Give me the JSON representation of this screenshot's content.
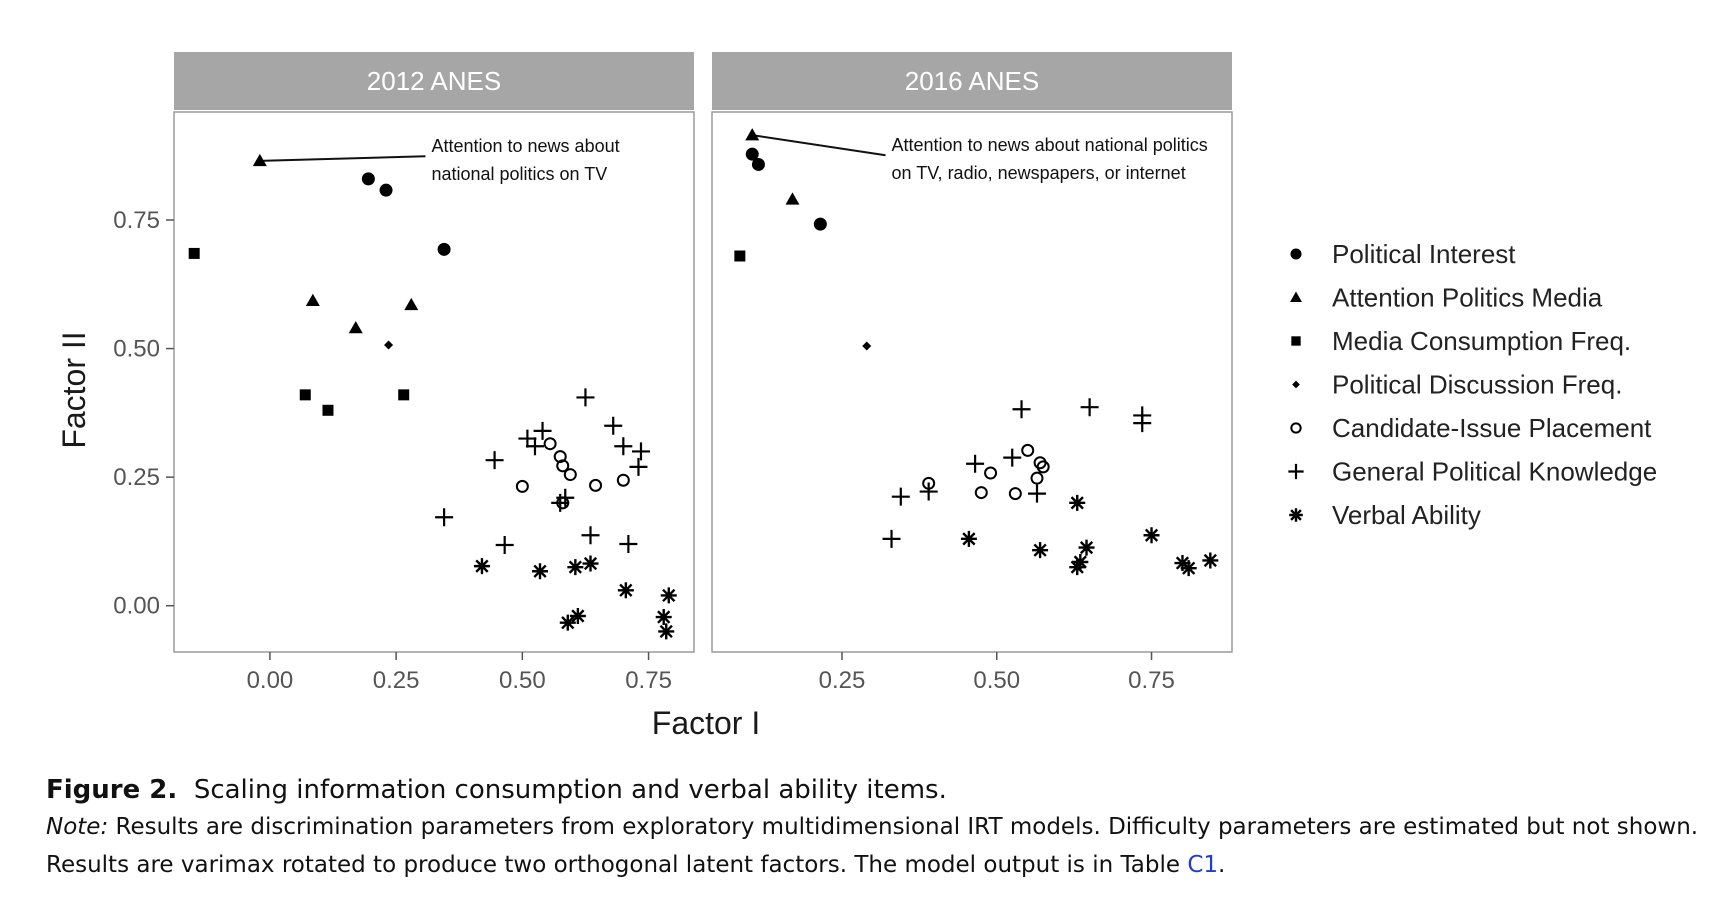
{
  "chart_data": {
    "type": "scatter",
    "xlabel": "Factor I",
    "ylabel": "Factor II",
    "ylim": [
      -0.09,
      0.96
    ],
    "yticks": [
      "0.00",
      "0.25",
      "0.50",
      "0.75"
    ],
    "ytick_values": [
      0.0,
      0.25,
      0.5,
      0.75
    ],
    "legend_position": "right",
    "legend": [
      {
        "label": "Political Interest",
        "marker": "circle"
      },
      {
        "label": "Attention Politics Media",
        "marker": "triangle"
      },
      {
        "label": "Media Consumption Freq.",
        "marker": "square"
      },
      {
        "label": "Political Discussion Freq.",
        "marker": "diamond"
      },
      {
        "label": "Candidate-Issue Placement",
        "marker": "open-circle"
      },
      {
        "label": "General Political Knowledge",
        "marker": "plus"
      },
      {
        "label": "Verbal Ability",
        "marker": "asterisk"
      }
    ],
    "panels": [
      {
        "title": "2012 ANES",
        "xlim": [
          -0.19,
          0.84
        ],
        "xticks": [
          "0.00",
          "0.25",
          "0.50",
          "0.75"
        ],
        "xtick_values": [
          0.0,
          0.25,
          0.5,
          0.75
        ],
        "annotation": {
          "lines": [
            "Attention to news about",
            "national politics on TV"
          ],
          "point": [
            -0.02,
            0.865
          ],
          "text_anchor": [
            0.32,
            0.874
          ]
        },
        "series": [
          {
            "name": "Political Interest",
            "points": [
              [
                0.195,
                0.83
              ],
              [
                0.23,
                0.808
              ],
              [
                0.345,
                0.693
              ]
            ]
          },
          {
            "name": "Attention Politics Media",
            "points": [
              [
                -0.02,
                0.865
              ],
              [
                0.085,
                0.593
              ],
              [
                0.17,
                0.54
              ],
              [
                0.28,
                0.585
              ]
            ]
          },
          {
            "name": "Media Consumption Freq.",
            "points": [
              [
                -0.15,
                0.685
              ],
              [
                0.07,
                0.41
              ],
              [
                0.115,
                0.38
              ],
              [
                0.265,
                0.41
              ]
            ]
          },
          {
            "name": "Political Discussion Freq.",
            "points": [
              [
                0.235,
                0.507
              ]
            ]
          },
          {
            "name": "Candidate-Issue Placement",
            "points": [
              [
                0.5,
                0.232
              ],
              [
                0.555,
                0.315
              ],
              [
                0.575,
                0.29
              ],
              [
                0.58,
                0.272
              ],
              [
                0.595,
                0.255
              ],
              [
                0.58,
                0.2
              ],
              [
                0.645,
                0.234
              ],
              [
                0.7,
                0.244
              ]
            ]
          },
          {
            "name": "General Political Knowledge",
            "points": [
              [
                0.345,
                0.172
              ],
              [
                0.445,
                0.283
              ],
              [
                0.465,
                0.118
              ],
              [
                0.51,
                0.325
              ],
              [
                0.525,
                0.31
              ],
              [
                0.54,
                0.34
              ],
              [
                0.575,
                0.2
              ],
              [
                0.585,
                0.21
              ],
              [
                0.625,
                0.405
              ],
              [
                0.635,
                0.137
              ],
              [
                0.68,
                0.35
              ],
              [
                0.7,
                0.31
              ],
              [
                0.71,
                0.12
              ],
              [
                0.735,
                0.3
              ],
              [
                0.73,
                0.27
              ]
            ]
          },
          {
            "name": "Verbal Ability",
            "points": [
              [
                0.42,
                0.077
              ],
              [
                0.535,
                0.067
              ],
              [
                0.59,
                -0.033
              ],
              [
                0.61,
                -0.02
              ],
              [
                0.605,
                0.075
              ],
              [
                0.635,
                0.082
              ],
              [
                0.705,
                0.03
              ],
              [
                0.78,
                -0.022
              ],
              [
                0.79,
                0.02
              ],
              [
                0.785,
                -0.05
              ]
            ]
          }
        ]
      },
      {
        "title": "2016 ANES",
        "xlim": [
          0.04,
          0.88
        ],
        "xticks": [
          "0.25",
          "0.50",
          "0.75"
        ],
        "xtick_values": [
          0.25,
          0.5,
          0.75
        ],
        "annotation": {
          "lines": [
            "Attention to news about national politics",
            "on TV, radio, newspapers, or internet"
          ],
          "point": [
            0.105,
            0.915
          ],
          "text_anchor": [
            0.33,
            0.876
          ]
        },
        "series": [
          {
            "name": "Political Interest",
            "points": [
              [
                0.105,
                0.878
              ],
              [
                0.115,
                0.858
              ],
              [
                0.215,
                0.742
              ]
            ]
          },
          {
            "name": "Attention Politics Media",
            "points": [
              [
                0.105,
                0.915
              ],
              [
                0.17,
                0.79
              ]
            ]
          },
          {
            "name": "Media Consumption Freq.",
            "points": [
              [
                0.085,
                0.68
              ]
            ]
          },
          {
            "name": "Political Discussion Freq.",
            "points": [
              [
                0.29,
                0.505
              ]
            ]
          },
          {
            "name": "Candidate-Issue Placement",
            "points": [
              [
                0.39,
                0.238
              ],
              [
                0.475,
                0.22
              ],
              [
                0.49,
                0.258
              ],
              [
                0.53,
                0.218
              ],
              [
                0.55,
                0.302
              ],
              [
                0.565,
                0.248
              ],
              [
                0.57,
                0.278
              ],
              [
                0.575,
                0.27
              ]
            ]
          },
          {
            "name": "General Political Knowledge",
            "points": [
              [
                0.33,
                0.13
              ],
              [
                0.345,
                0.212
              ],
              [
                0.39,
                0.222
              ],
              [
                0.465,
                0.276
              ],
              [
                0.525,
                0.288
              ],
              [
                0.54,
                0.382
              ],
              [
                0.565,
                0.218
              ],
              [
                0.65,
                0.386
              ],
              [
                0.735,
                0.37
              ],
              [
                0.735,
                0.355
              ]
            ]
          },
          {
            "name": "Verbal Ability",
            "points": [
              [
                0.455,
                0.13
              ],
              [
                0.57,
                0.108
              ],
              [
                0.63,
                0.2
              ],
              [
                0.63,
                0.075
              ],
              [
                0.635,
                0.085
              ],
              [
                0.645,
                0.113
              ],
              [
                0.75,
                0.137
              ],
              [
                0.8,
                0.083
              ],
              [
                0.81,
                0.073
              ],
              [
                0.845,
                0.088
              ]
            ]
          }
        ]
      }
    ]
  },
  "caption": {
    "label": "Figure 2.",
    "title": "Scaling information consumption and verbal ability items.",
    "note_label": "Note:",
    "note_text": "Results are discrimination parameters from exploratory multidimensional IRT models. Difficulty parameters are estimated but not shown. Results are varimax rotated to produce two orthogonal latent factors. The model output is in Table",
    "note_link": "C1",
    "note_end": "."
  }
}
